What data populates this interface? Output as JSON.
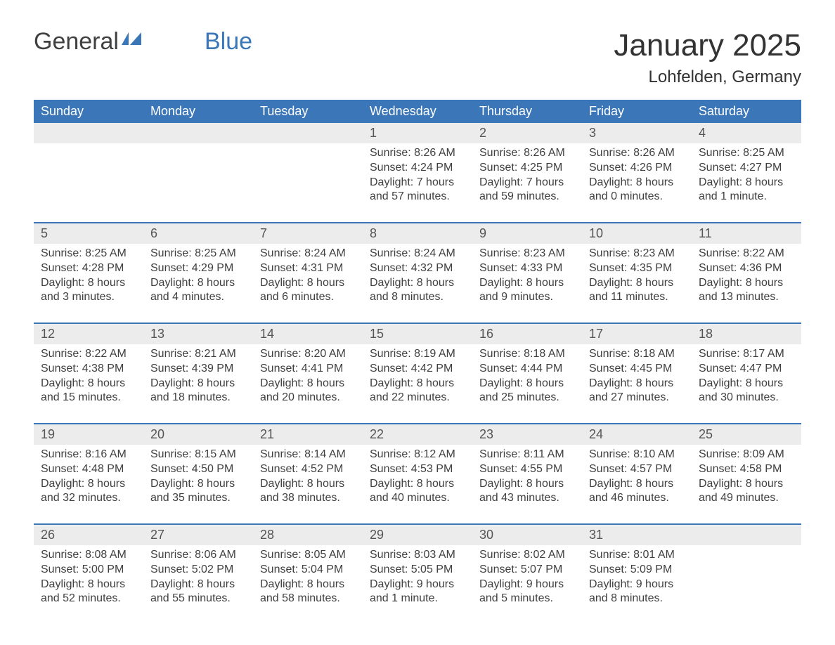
{
  "logo": {
    "general": "General",
    "blue": "Blue"
  },
  "title": "January 2025",
  "location": "Lohfelden, Germany",
  "colors": {
    "accent": "#3a76b8",
    "header_bg": "#3a76b8",
    "header_text": "#ffffff",
    "daynum_bg": "#ececec",
    "text": "#404040",
    "background": "#ffffff"
  },
  "weekdays": [
    "Sunday",
    "Monday",
    "Tuesday",
    "Wednesday",
    "Thursday",
    "Friday",
    "Saturday"
  ],
  "weeks": [
    {
      "days": [
        {
          "num": "",
          "sunrise": "",
          "sunset": "",
          "daylight1": "",
          "daylight2": ""
        },
        {
          "num": "",
          "sunrise": "",
          "sunset": "",
          "daylight1": "",
          "daylight2": ""
        },
        {
          "num": "",
          "sunrise": "",
          "sunset": "",
          "daylight1": "",
          "daylight2": ""
        },
        {
          "num": "1",
          "sunrise": "Sunrise: 8:26 AM",
          "sunset": "Sunset: 4:24 PM",
          "daylight1": "Daylight: 7 hours",
          "daylight2": "and 57 minutes."
        },
        {
          "num": "2",
          "sunrise": "Sunrise: 8:26 AM",
          "sunset": "Sunset: 4:25 PM",
          "daylight1": "Daylight: 7 hours",
          "daylight2": "and 59 minutes."
        },
        {
          "num": "3",
          "sunrise": "Sunrise: 8:26 AM",
          "sunset": "Sunset: 4:26 PM",
          "daylight1": "Daylight: 8 hours",
          "daylight2": "and 0 minutes."
        },
        {
          "num": "4",
          "sunrise": "Sunrise: 8:25 AM",
          "sunset": "Sunset: 4:27 PM",
          "daylight1": "Daylight: 8 hours",
          "daylight2": "and 1 minute."
        }
      ]
    },
    {
      "days": [
        {
          "num": "5",
          "sunrise": "Sunrise: 8:25 AM",
          "sunset": "Sunset: 4:28 PM",
          "daylight1": "Daylight: 8 hours",
          "daylight2": "and 3 minutes."
        },
        {
          "num": "6",
          "sunrise": "Sunrise: 8:25 AM",
          "sunset": "Sunset: 4:29 PM",
          "daylight1": "Daylight: 8 hours",
          "daylight2": "and 4 minutes."
        },
        {
          "num": "7",
          "sunrise": "Sunrise: 8:24 AM",
          "sunset": "Sunset: 4:31 PM",
          "daylight1": "Daylight: 8 hours",
          "daylight2": "and 6 minutes."
        },
        {
          "num": "8",
          "sunrise": "Sunrise: 8:24 AM",
          "sunset": "Sunset: 4:32 PM",
          "daylight1": "Daylight: 8 hours",
          "daylight2": "and 8 minutes."
        },
        {
          "num": "9",
          "sunrise": "Sunrise: 8:23 AM",
          "sunset": "Sunset: 4:33 PM",
          "daylight1": "Daylight: 8 hours",
          "daylight2": "and 9 minutes."
        },
        {
          "num": "10",
          "sunrise": "Sunrise: 8:23 AM",
          "sunset": "Sunset: 4:35 PM",
          "daylight1": "Daylight: 8 hours",
          "daylight2": "and 11 minutes."
        },
        {
          "num": "11",
          "sunrise": "Sunrise: 8:22 AM",
          "sunset": "Sunset: 4:36 PM",
          "daylight1": "Daylight: 8 hours",
          "daylight2": "and 13 minutes."
        }
      ]
    },
    {
      "days": [
        {
          "num": "12",
          "sunrise": "Sunrise: 8:22 AM",
          "sunset": "Sunset: 4:38 PM",
          "daylight1": "Daylight: 8 hours",
          "daylight2": "and 15 minutes."
        },
        {
          "num": "13",
          "sunrise": "Sunrise: 8:21 AM",
          "sunset": "Sunset: 4:39 PM",
          "daylight1": "Daylight: 8 hours",
          "daylight2": "and 18 minutes."
        },
        {
          "num": "14",
          "sunrise": "Sunrise: 8:20 AM",
          "sunset": "Sunset: 4:41 PM",
          "daylight1": "Daylight: 8 hours",
          "daylight2": "and 20 minutes."
        },
        {
          "num": "15",
          "sunrise": "Sunrise: 8:19 AM",
          "sunset": "Sunset: 4:42 PM",
          "daylight1": "Daylight: 8 hours",
          "daylight2": "and 22 minutes."
        },
        {
          "num": "16",
          "sunrise": "Sunrise: 8:18 AM",
          "sunset": "Sunset: 4:44 PM",
          "daylight1": "Daylight: 8 hours",
          "daylight2": "and 25 minutes."
        },
        {
          "num": "17",
          "sunrise": "Sunrise: 8:18 AM",
          "sunset": "Sunset: 4:45 PM",
          "daylight1": "Daylight: 8 hours",
          "daylight2": "and 27 minutes."
        },
        {
          "num": "18",
          "sunrise": "Sunrise: 8:17 AM",
          "sunset": "Sunset: 4:47 PM",
          "daylight1": "Daylight: 8 hours",
          "daylight2": "and 30 minutes."
        }
      ]
    },
    {
      "days": [
        {
          "num": "19",
          "sunrise": "Sunrise: 8:16 AM",
          "sunset": "Sunset: 4:48 PM",
          "daylight1": "Daylight: 8 hours",
          "daylight2": "and 32 minutes."
        },
        {
          "num": "20",
          "sunrise": "Sunrise: 8:15 AM",
          "sunset": "Sunset: 4:50 PM",
          "daylight1": "Daylight: 8 hours",
          "daylight2": "and 35 minutes."
        },
        {
          "num": "21",
          "sunrise": "Sunrise: 8:14 AM",
          "sunset": "Sunset: 4:52 PM",
          "daylight1": "Daylight: 8 hours",
          "daylight2": "and 38 minutes."
        },
        {
          "num": "22",
          "sunrise": "Sunrise: 8:12 AM",
          "sunset": "Sunset: 4:53 PM",
          "daylight1": "Daylight: 8 hours",
          "daylight2": "and 40 minutes."
        },
        {
          "num": "23",
          "sunrise": "Sunrise: 8:11 AM",
          "sunset": "Sunset: 4:55 PM",
          "daylight1": "Daylight: 8 hours",
          "daylight2": "and 43 minutes."
        },
        {
          "num": "24",
          "sunrise": "Sunrise: 8:10 AM",
          "sunset": "Sunset: 4:57 PM",
          "daylight1": "Daylight: 8 hours",
          "daylight2": "and 46 minutes."
        },
        {
          "num": "25",
          "sunrise": "Sunrise: 8:09 AM",
          "sunset": "Sunset: 4:58 PM",
          "daylight1": "Daylight: 8 hours",
          "daylight2": "and 49 minutes."
        }
      ]
    },
    {
      "days": [
        {
          "num": "26",
          "sunrise": "Sunrise: 8:08 AM",
          "sunset": "Sunset: 5:00 PM",
          "daylight1": "Daylight: 8 hours",
          "daylight2": "and 52 minutes."
        },
        {
          "num": "27",
          "sunrise": "Sunrise: 8:06 AM",
          "sunset": "Sunset: 5:02 PM",
          "daylight1": "Daylight: 8 hours",
          "daylight2": "and 55 minutes."
        },
        {
          "num": "28",
          "sunrise": "Sunrise: 8:05 AM",
          "sunset": "Sunset: 5:04 PM",
          "daylight1": "Daylight: 8 hours",
          "daylight2": "and 58 minutes."
        },
        {
          "num": "29",
          "sunrise": "Sunrise: 8:03 AM",
          "sunset": "Sunset: 5:05 PM",
          "daylight1": "Daylight: 9 hours",
          "daylight2": "and 1 minute."
        },
        {
          "num": "30",
          "sunrise": "Sunrise: 8:02 AM",
          "sunset": "Sunset: 5:07 PM",
          "daylight1": "Daylight: 9 hours",
          "daylight2": "and 5 minutes."
        },
        {
          "num": "31",
          "sunrise": "Sunrise: 8:01 AM",
          "sunset": "Sunset: 5:09 PM",
          "daylight1": "Daylight: 9 hours",
          "daylight2": "and 8 minutes."
        },
        {
          "num": "",
          "sunrise": "",
          "sunset": "",
          "daylight1": "",
          "daylight2": ""
        }
      ]
    }
  ]
}
